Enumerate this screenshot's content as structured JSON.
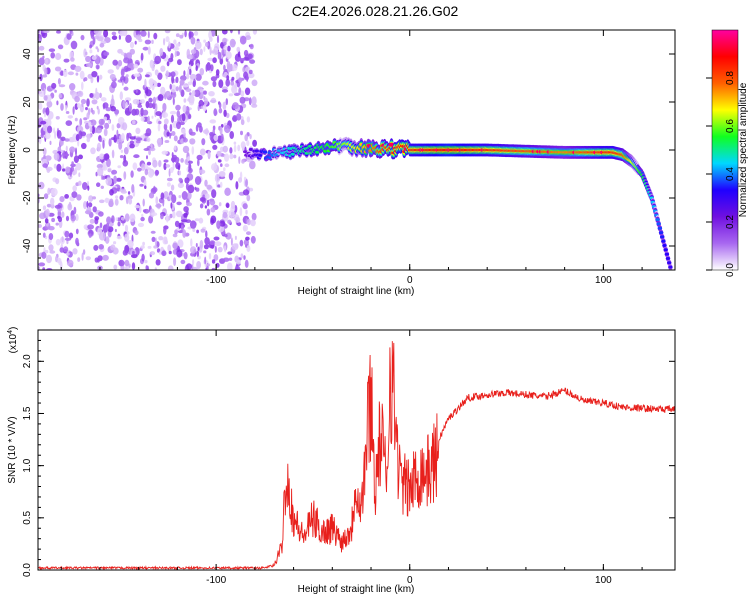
{
  "title": "C2E4.2026.028.21.26.G02",
  "colors": {
    "snr_line": "#e8201c",
    "axis": "#000000",
    "background": "#ffffff"
  },
  "chart_data": [
    {
      "type": "heatmap",
      "name": "spectrogram",
      "xlabel": "Height of straight line (km)",
      "ylabel": "Frequency (Hz)",
      "xlim": [
        -192,
        137
      ],
      "ylim": [
        -50,
        50
      ],
      "x_ticks": [
        -100,
        0,
        100
      ],
      "x_tick_labels": [
        "-100",
        "0",
        "100"
      ],
      "y_ticks": [
        -40,
        -20,
        0,
        20,
        40
      ],
      "y_tick_labels": [
        "-40",
        "-20",
        "0",
        "20",
        "40"
      ],
      "colorbar": {
        "label": "Normalized spectral amplitude",
        "range": [
          0,
          1
        ],
        "ticks": [
          0.0,
          0.2,
          0.4,
          0.6,
          0.8
        ],
        "tick_labels": [
          "0.0",
          "0.2",
          "0.4",
          "0.6",
          "0.8"
        ],
        "colormap": [
          "#ffffff",
          "#a868f0",
          "#7010e0",
          "#2000ff",
          "#00d8ff",
          "#10ff20",
          "#ffff00",
          "#ff6000",
          "#ff0000",
          "#ff00a0"
        ]
      },
      "noise_region": {
        "x_range": [
          -192,
          -83
        ],
        "description": "diffuse purple noise across all frequencies"
      },
      "signal_ridge": {
        "x": [
          -85,
          -75,
          -65,
          -55,
          -45,
          -35,
          -25,
          -15,
          -5,
          0,
          20,
          40,
          60,
          80,
          100,
          105,
          110,
          115,
          120,
          125,
          130,
          135
        ],
        "freq": [
          -1,
          -2,
          -1,
          0,
          1,
          2,
          1,
          0.5,
          0.5,
          0,
          0,
          0,
          -0.5,
          -1,
          -1,
          -1,
          -2,
          -5,
          -10,
          -20,
          -35,
          -50
        ],
        "amplitude": [
          0.2,
          0.35,
          0.45,
          0.5,
          0.55,
          0.6,
          0.7,
          0.8,
          0.85,
          0.85,
          0.9,
          0.85,
          0.8,
          0.75,
          0.85,
          0.85,
          0.8,
          0.65,
          0.55,
          0.45,
          0.35,
          0.3
        ]
      }
    },
    {
      "type": "line",
      "name": "snr",
      "xlabel": "Height of straight line (km)",
      "ylabel": "SNR (10 * V/V)",
      "scale_note_base": "(x10",
      "scale_note_exp": "4",
      "scale_note_close": ")",
      "xlim": [
        -192,
        137
      ],
      "ylim": [
        0,
        2.3
      ],
      "x_ticks": [
        -100,
        0,
        100
      ],
      "x_tick_labels": [
        "-100",
        "0",
        "100"
      ],
      "y_ticks": [
        0.0,
        0.5,
        1.0,
        1.5,
        2.0
      ],
      "y_tick_labels": [
        "0.0",
        "0.5",
        "1.0",
        "1.5",
        "2.0"
      ],
      "series": [
        {
          "name": "SNR",
          "x": [
            -192,
            -150,
            -100,
            -75,
            -70,
            -66,
            -64,
            -60,
            -55,
            -50,
            -45,
            -40,
            -35,
            -30,
            -28,
            -25,
            -20,
            -18,
            -15,
            -12,
            -10,
            -5,
            0,
            5,
            10,
            15,
            20,
            25,
            30,
            40,
            50,
            60,
            70,
            80,
            90,
            100,
            110,
            120,
            130,
            137
          ],
          "y": [
            0.02,
            0.02,
            0.02,
            0.02,
            0.05,
            0.25,
            1.05,
            0.55,
            0.35,
            0.55,
            0.4,
            0.45,
            0.3,
            0.45,
            0.95,
            0.65,
            1.95,
            0.85,
            1.45,
            0.95,
            2.25,
            0.95,
            0.85,
            1.05,
            1.05,
            1.25,
            1.45,
            1.55,
            1.65,
            1.68,
            1.7,
            1.68,
            1.66,
            1.72,
            1.62,
            1.6,
            1.56,
            1.55,
            1.54,
            1.54
          ]
        }
      ]
    }
  ]
}
